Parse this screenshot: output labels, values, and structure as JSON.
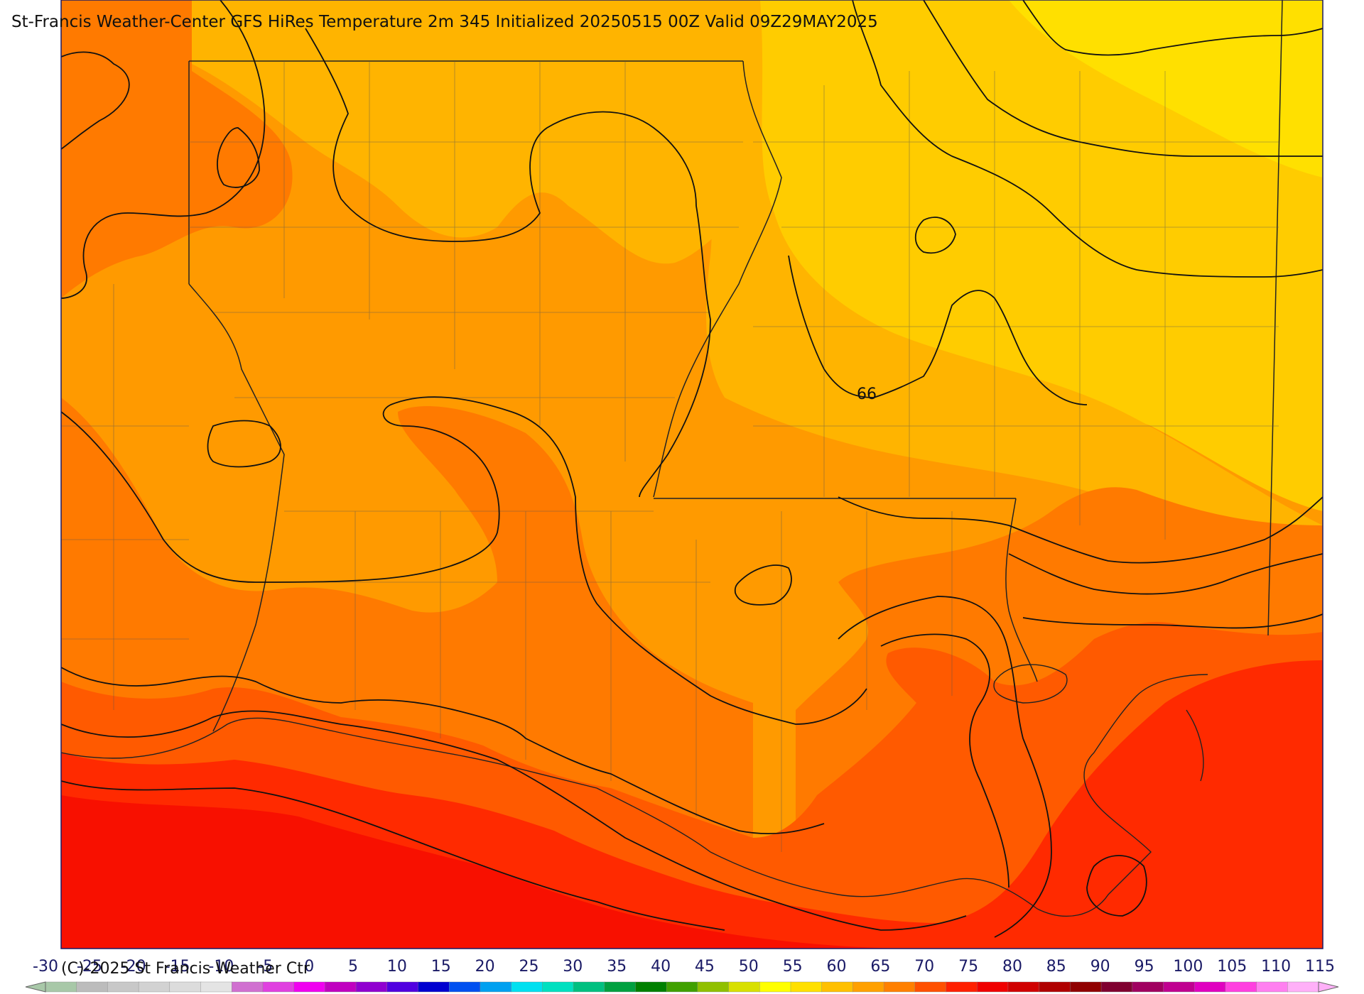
{
  "title": "St-Francis Weather-Center GFS HiRes Temperature 2m  345 Initialized 20250515 00Z Valid 09Z29MAY2025",
  "copyright": "(C)-2025 St Francis Weather Ctr",
  "contour_label": "66",
  "colorbar": {
    "ticks": [
      "-30",
      "-25",
      "-20",
      "-15",
      "-10",
      "-5",
      "0",
      "5",
      "10",
      "15",
      "20",
      "25",
      "30",
      "35",
      "40",
      "45",
      "50",
      "55",
      "60",
      "65",
      "70",
      "75",
      "80",
      "85",
      "90",
      "95",
      "100",
      "105",
      "110",
      "115"
    ],
    "colors": [
      "#a8c8a8",
      "#bcbcbc",
      "#c8c8c8",
      "#d2d2d2",
      "#dcdcdc",
      "#e4e4e4",
      "#d070d0",
      "#e040e0",
      "#f000f0",
      "#c000c0",
      "#9000d0",
      "#5000e0",
      "#0000d0",
      "#0050f0",
      "#00a0f0",
      "#00e0f0",
      "#00e0c0",
      "#00c080",
      "#00a040",
      "#008000",
      "#40a000",
      "#90c000",
      "#d8e000",
      "#ffff00",
      "#ffe000",
      "#ffc000",
      "#ffa000",
      "#ff8000",
      "#ff5000",
      "#ff2000",
      "#f00000",
      "#d00000",
      "#b00000",
      "#900000",
      "#800030",
      "#a00060",
      "#c00090",
      "#e000c0",
      "#ff40e0",
      "#ff80f0",
      "#ffb0f8"
    ]
  },
  "temperature_bands": {
    "yellow": "#ffe000",
    "gold": "#ffcc00",
    "light_orange": "#ffb400",
    "orange": "#ff9a00",
    "dark_orange": "#ff7a00",
    "red_orange": "#ff5a00",
    "red": "#ff2a00",
    "deep_red": "#f81000"
  }
}
